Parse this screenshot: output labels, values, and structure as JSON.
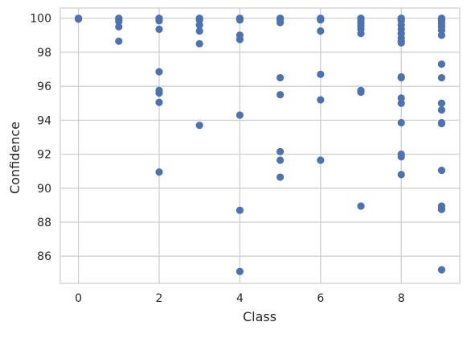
{
  "chart_data": {
    "type": "scatter",
    "title": "",
    "xlabel": "Class",
    "ylabel": "Confidence",
    "xlim": [
      -0.45,
      9.45
    ],
    "ylim": [
      84.4,
      100.6
    ],
    "xticks": [
      0,
      2,
      4,
      6,
      8
    ],
    "yticks": [
      86,
      88,
      90,
      92,
      94,
      96,
      98,
      100
    ],
    "grid": true,
    "marker_color": "#4C72B0",
    "points": [
      [
        0,
        100.0
      ],
      [
        0,
        99.98
      ],
      [
        0,
        99.95
      ],
      [
        1,
        100.0
      ],
      [
        1,
        99.9
      ],
      [
        1,
        99.8
      ],
      [
        1,
        99.5
      ],
      [
        1,
        98.65
      ],
      [
        2,
        100.0
      ],
      [
        2,
        99.95
      ],
      [
        2,
        99.85
      ],
      [
        2,
        99.35
      ],
      [
        2,
        96.85
      ],
      [
        2,
        95.75
      ],
      [
        2,
        95.6
      ],
      [
        2,
        95.05
      ],
      [
        2,
        90.95
      ],
      [
        3,
        100.0
      ],
      [
        3,
        99.9
      ],
      [
        3,
        99.6
      ],
      [
        3,
        99.25
      ],
      [
        3,
        98.5
      ],
      [
        3,
        93.7
      ],
      [
        4,
        100.0
      ],
      [
        4,
        99.95
      ],
      [
        4,
        99.9
      ],
      [
        4,
        99.0
      ],
      [
        4,
        98.75
      ],
      [
        4,
        94.3
      ],
      [
        4,
        88.7
      ],
      [
        4,
        85.1
      ],
      [
        5,
        100.0
      ],
      [
        5,
        99.9
      ],
      [
        5,
        99.75
      ],
      [
        5,
        96.5
      ],
      [
        5,
        95.5
      ],
      [
        5,
        92.15
      ],
      [
        5,
        91.65
      ],
      [
        5,
        90.65
      ],
      [
        6,
        100.0
      ],
      [
        6,
        99.95
      ],
      [
        6,
        99.9
      ],
      [
        6,
        99.25
      ],
      [
        6,
        96.7
      ],
      [
        6,
        95.2
      ],
      [
        6,
        91.65
      ],
      [
        7,
        100.0
      ],
      [
        7,
        99.9
      ],
      [
        7,
        99.75
      ],
      [
        7,
        99.55
      ],
      [
        7,
        99.35
      ],
      [
        7,
        99.1
      ],
      [
        7,
        95.75
      ],
      [
        7,
        95.65
      ],
      [
        7,
        88.95
      ],
      [
        8,
        100.0
      ],
      [
        8,
        99.95
      ],
      [
        8,
        99.85
      ],
      [
        8,
        99.6
      ],
      [
        8,
        99.35
      ],
      [
        8,
        99.1
      ],
      [
        8,
        98.85
      ],
      [
        8,
        98.65
      ],
      [
        8,
        98.55
      ],
      [
        8,
        96.55
      ],
      [
        8,
        96.5
      ],
      [
        8,
        95.3
      ],
      [
        8,
        95.0
      ],
      [
        8,
        93.85
      ],
      [
        8,
        92.0
      ],
      [
        8,
        91.85
      ],
      [
        8,
        90.8
      ],
      [
        9,
        100.0
      ],
      [
        9,
        99.95
      ],
      [
        9,
        99.85
      ],
      [
        9,
        99.7
      ],
      [
        9,
        99.5
      ],
      [
        9,
        99.3
      ],
      [
        9,
        99.0
      ],
      [
        9,
        97.3
      ],
      [
        9,
        96.5
      ],
      [
        9,
        95.0
      ],
      [
        9,
        94.6
      ],
      [
        9,
        93.85
      ],
      [
        9,
        93.8
      ],
      [
        9,
        91.05
      ],
      [
        9,
        88.95
      ],
      [
        9,
        88.75
      ],
      [
        9,
        85.2
      ]
    ]
  }
}
